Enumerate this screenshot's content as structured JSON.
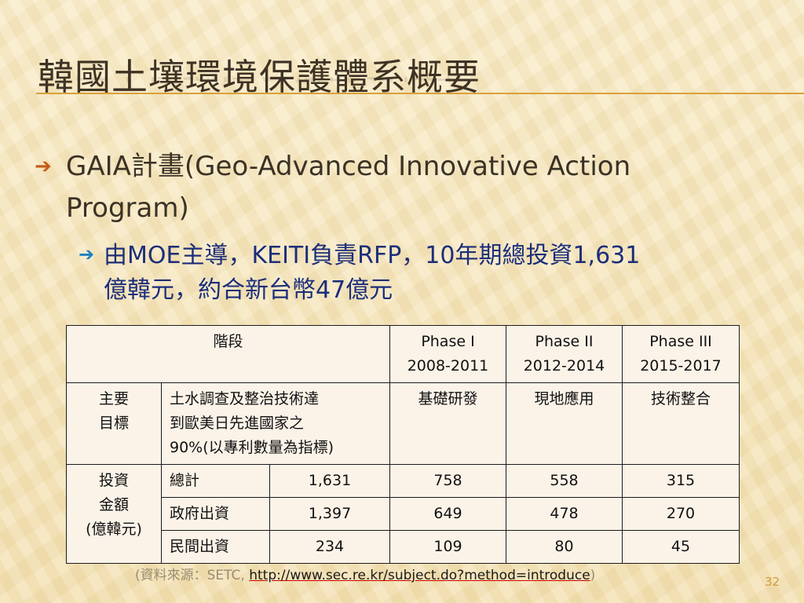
{
  "slide": {
    "title": "韓國土壤環境保護體系概要",
    "bullet1_head": "GAIA計畫(Geo-Advanced Innovative Action",
    "bullet1_tail": "Program)",
    "bullet2_head": "由MOE主導，KEITI負責RFP，10年期總投資1,631",
    "bullet2_tail": "億韓元，約合新台幣47億元",
    "page_number": "32"
  },
  "table": {
    "header": {
      "stage": "階段",
      "phase1_name": "Phase I",
      "phase1_years": "2008-2011",
      "phase2_name": "Phase II",
      "phase2_years": "2012-2014",
      "phase3_name": "Phase III",
      "phase3_years": "2015-2017"
    },
    "goal": {
      "label_line1": "主要",
      "label_line2": "目標",
      "desc_line1": "土水調查及整治技術達",
      "desc_line2": "到歐美日先進國家之",
      "desc_line3": "90%(以專利數量為指標)",
      "phase1": "基礎研發",
      "phase2": "現地應用",
      "phase3": "技術整合"
    },
    "investment": {
      "label_line1": "投資",
      "label_line2": "金額",
      "label_line3": "(億韓元)",
      "rows": [
        {
          "label": "總計",
          "total": "1,631",
          "phase1": "758",
          "phase2": "558",
          "phase3": "315"
        },
        {
          "label": "政府出資",
          "total": "1,397",
          "phase1": "649",
          "phase2": "478",
          "phase3": "270"
        },
        {
          "label": "民間出資",
          "total": "234",
          "phase1": "109",
          "phase2": "80",
          "phase3": "45"
        }
      ]
    }
  },
  "source": {
    "prefix": "(資料來源：SETC, ",
    "url": "http://www.sec.re.kr/subject.do?method=introduce",
    "suffix": ")"
  },
  "colors": {
    "title_rule": "#d9a13b",
    "bullet1_arrow": "#c45a16",
    "bullet2_arrow": "#1d7fc4",
    "bullet2_text": "#1c2e7a",
    "page_number": "#d39a3b"
  },
  "icons": {
    "bullet1": "arrow-right-icon",
    "bullet2": "arrow-right-icon"
  }
}
